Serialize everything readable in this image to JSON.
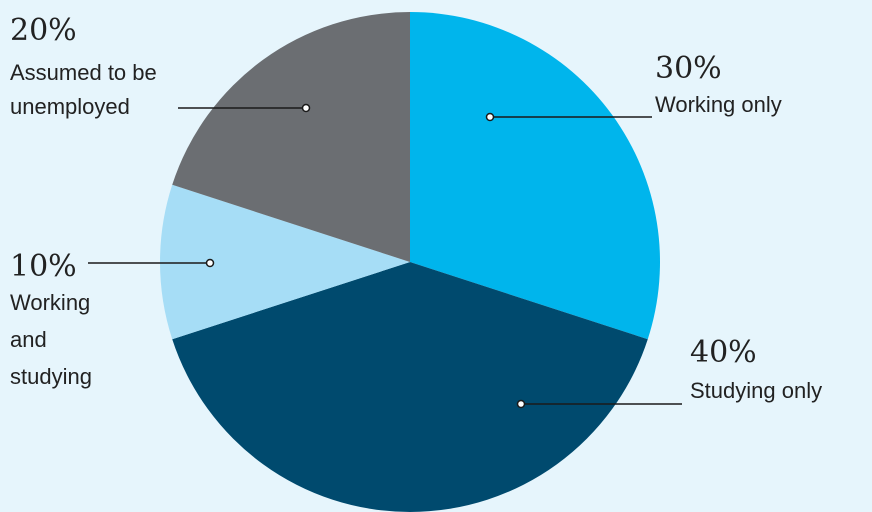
{
  "chart_data": {
    "type": "pie",
    "start_angle_deg": 0,
    "direction": "clockwise",
    "slices": [
      {
        "value": 30,
        "percent_label": "30%",
        "label_lines": [
          "Working only"
        ],
        "color": "#00b5ec"
      },
      {
        "value": 40,
        "percent_label": "40%",
        "label_lines": [
          "Studying only"
        ],
        "color": "#004a6e"
      },
      {
        "value": 10,
        "percent_label": "10%",
        "label_lines": [
          "Working",
          "and",
          "studying"
        ],
        "color": "#a6ddf6"
      },
      {
        "value": 20,
        "percent_label": "20%",
        "label_lines": [
          "Assumed to be",
          "unemployed"
        ],
        "color": "#6b6e72"
      }
    ]
  }
}
